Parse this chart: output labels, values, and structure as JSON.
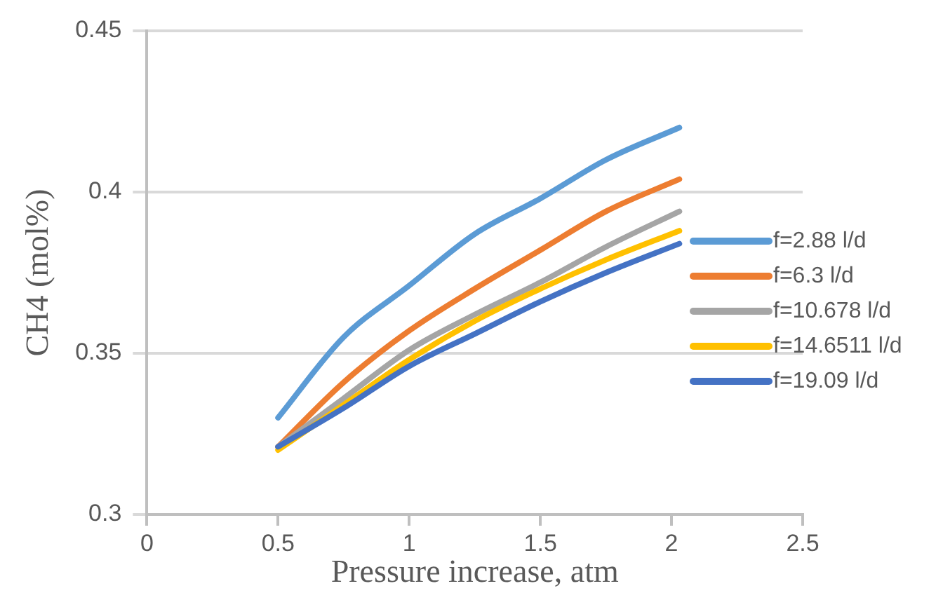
{
  "chart_data": {
    "type": "line",
    "xlabel": "Pressure increase, atm",
    "ylabel": "CH4 (mol%)",
    "xlim": [
      0,
      2.5
    ],
    "xticks": [
      0,
      0.5,
      1,
      1.5,
      2,
      2.5
    ],
    "ylim": [
      0.3,
      0.45
    ],
    "yticks": [
      0.3,
      0.35,
      0.4,
      0.45
    ],
    "grid": "y",
    "legend": "right",
    "marker": "none",
    "series": [
      {
        "name": "f=2.88 l/d",
        "color": "#5b9bd5",
        "x": [
          0.5,
          0.75,
          1,
          1.25,
          1.5,
          1.75,
          2.03
        ],
        "values": [
          0.33,
          0.355,
          0.371,
          0.387,
          0.398,
          0.41,
          0.42
        ]
      },
      {
        "name": "f=6.3 l/d",
        "color": "#ed7d31",
        "x": [
          0.5,
          0.75,
          1,
          1.25,
          1.5,
          1.75,
          2.03
        ],
        "values": [
          0.321,
          0.341,
          0.357,
          0.37,
          0.382,
          0.394,
          0.404
        ]
      },
      {
        "name": "f=10.678 l/d",
        "color": "#a5a5a5",
        "x": [
          0.5,
          0.75,
          1,
          1.25,
          1.5,
          1.75,
          2.03
        ],
        "values": [
          0.321,
          0.336,
          0.351,
          0.362,
          0.372,
          0.383,
          0.394
        ]
      },
      {
        "name": "f=14.6511 l/d",
        "color": "#ffc000",
        "x": [
          0.5,
          0.75,
          1,
          1.25,
          1.5,
          1.75,
          2.03
        ],
        "values": [
          0.32,
          0.334,
          0.348,
          0.36,
          0.37,
          0.379,
          0.388
        ]
      },
      {
        "name": "f=19.09 l/d",
        "color": "#4472c4",
        "x": [
          0.5,
          0.75,
          1,
          1.25,
          1.5,
          1.75,
          2.03
        ],
        "values": [
          0.321,
          0.333,
          0.346,
          0.356,
          0.366,
          0.375,
          0.384
        ]
      }
    ]
  }
}
